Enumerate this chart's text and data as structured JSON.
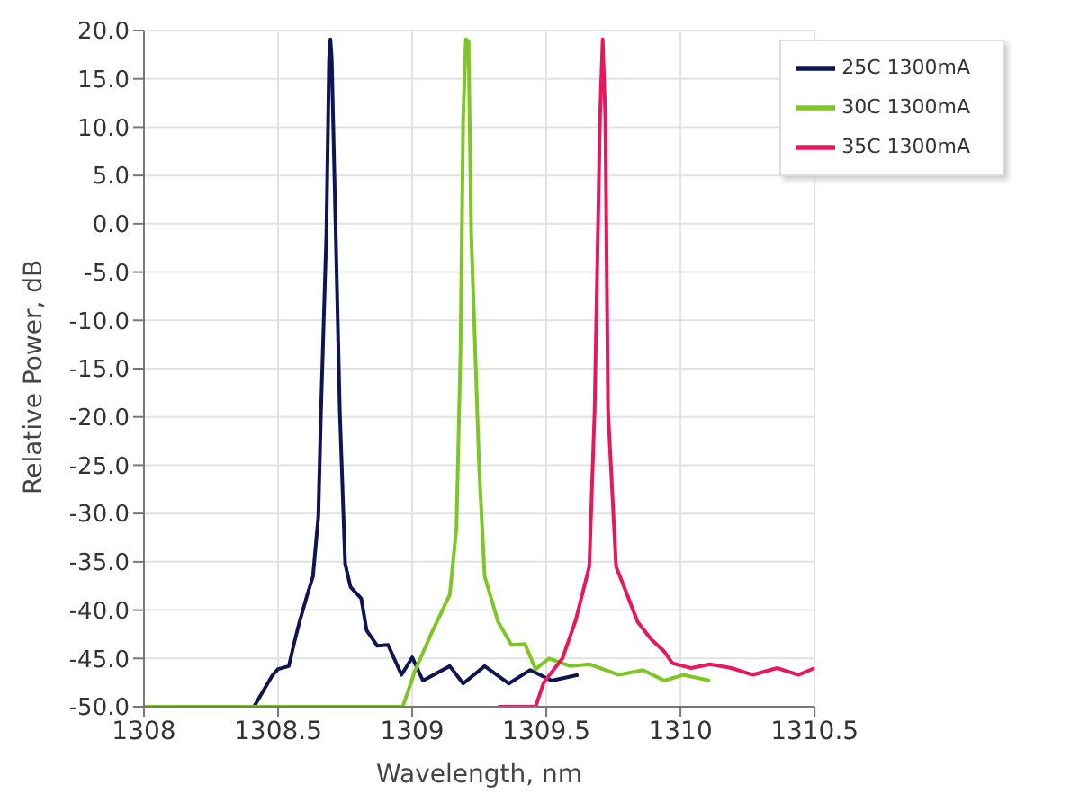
{
  "chart_data": {
    "type": "line",
    "xlabel": "Wavelength, nm",
    "ylabel": "Relative Power, dB",
    "xlim": [
      1308,
      1310.5
    ],
    "xticks": [
      1308,
      1308.5,
      1309,
      1309.5,
      1310,
      1310.5
    ],
    "ylim": [
      -50,
      20
    ],
    "yticks": [
      {
        "value": -50,
        "label": "-50.0"
      },
      {
        "value": -45,
        "label": "-45.0"
      },
      {
        "value": -40,
        "label": "-40.0"
      },
      {
        "value": -35,
        "label": "-35.0"
      },
      {
        "value": -30,
        "label": "-30.0"
      },
      {
        "value": -25,
        "label": "-25.0"
      },
      {
        "value": -20,
        "label": "-20.0"
      },
      {
        "value": -15,
        "label": "-15.0"
      },
      {
        "value": -10,
        "label": "-10.0"
      },
      {
        "value": -5,
        "label": "-5.0"
      },
      {
        "value": 0,
        "label": "0.0"
      },
      {
        "value": 5,
        "label": "5.0"
      },
      {
        "value": 10,
        "label": "10.0"
      },
      {
        "value": 15,
        "label": "15.0"
      },
      {
        "value": 20,
        "label": "20.0"
      }
    ],
    "grid": true,
    "legend": "top right",
    "series": [
      {
        "name": "25C 1300mA",
        "color": "#0d1552",
        "x": [
          1308.32,
          1308.41,
          1308.48,
          1308.5,
          1308.54,
          1308.56,
          1308.58,
          1308.61,
          1308.63,
          1308.65,
          1308.66,
          1308.68,
          1308.69,
          1308.695,
          1308.7,
          1308.715,
          1308.73,
          1308.75,
          1308.77,
          1308.81,
          1308.83,
          1308.87,
          1308.91,
          1308.96,
          1309.0,
          1309.04,
          1309.14,
          1309.19,
          1309.27,
          1309.36,
          1309.44,
          1309.52,
          1309.62
        ],
        "values": [
          -50,
          -50,
          -46.7,
          -46.1,
          -45.8,
          -43.4,
          -41.2,
          -38.3,
          -36.5,
          -30.3,
          -19.3,
          -1.1,
          17.1,
          19.1,
          17.1,
          -1.1,
          -19.3,
          -35.2,
          -37.6,
          -38.8,
          -42.1,
          -43.7,
          -43.6,
          -46.7,
          -44.9,
          -47.3,
          -45.8,
          -47.6,
          -45.8,
          -47.6,
          -46.2,
          -47.3,
          -46.7
        ]
      },
      {
        "name": "30C 1300mA",
        "color": "#7dc623",
        "x": [
          1308,
          1308.5,
          1308.965,
          1309.01,
          1309.07,
          1309.14,
          1309.165,
          1309.18,
          1309.19,
          1309.2,
          1309.21,
          1309.22,
          1309.25,
          1309.27,
          1309.32,
          1309.37,
          1309.42,
          1309.46,
          1309.51,
          1309.59,
          1309.66,
          1309.77,
          1309.86,
          1309.94,
          1310.01,
          1310.11
        ],
        "values": [
          -50,
          -50,
          -50,
          -46.3,
          -42.5,
          -38.4,
          -31.5,
          -13.3,
          10.9,
          19.1,
          18.9,
          -1.1,
          -25.5,
          -36.5,
          -41.2,
          -43.6,
          -43.5,
          -46.1,
          -45,
          -45.8,
          -45.6,
          -46.7,
          -46.2,
          -47.3,
          -46.7,
          -47.3
        ]
      },
      {
        "name": "35C 1300mA",
        "color": "#e8175d",
        "x": [
          1309.32,
          1309.46,
          1309.49,
          1309.56,
          1309.61,
          1309.66,
          1309.68,
          1309.7,
          1309.71,
          1309.72,
          1309.73,
          1309.76,
          1309.79,
          1309.84,
          1309.89,
          1309.94,
          1309.97,
          1310.04,
          1310.11,
          1310.19,
          1310.27,
          1310.36,
          1310.44,
          1310.5
        ],
        "values": [
          -50,
          -50,
          -47.5,
          -45,
          -41,
          -35.5,
          -19.3,
          10.9,
          19.1,
          10.9,
          -19.3,
          -35.5,
          -37.6,
          -41.2,
          -43,
          -44.3,
          -45.5,
          -46,
          -45.6,
          -46,
          -46.7,
          -46,
          -46.7,
          -46
        ]
      }
    ]
  }
}
